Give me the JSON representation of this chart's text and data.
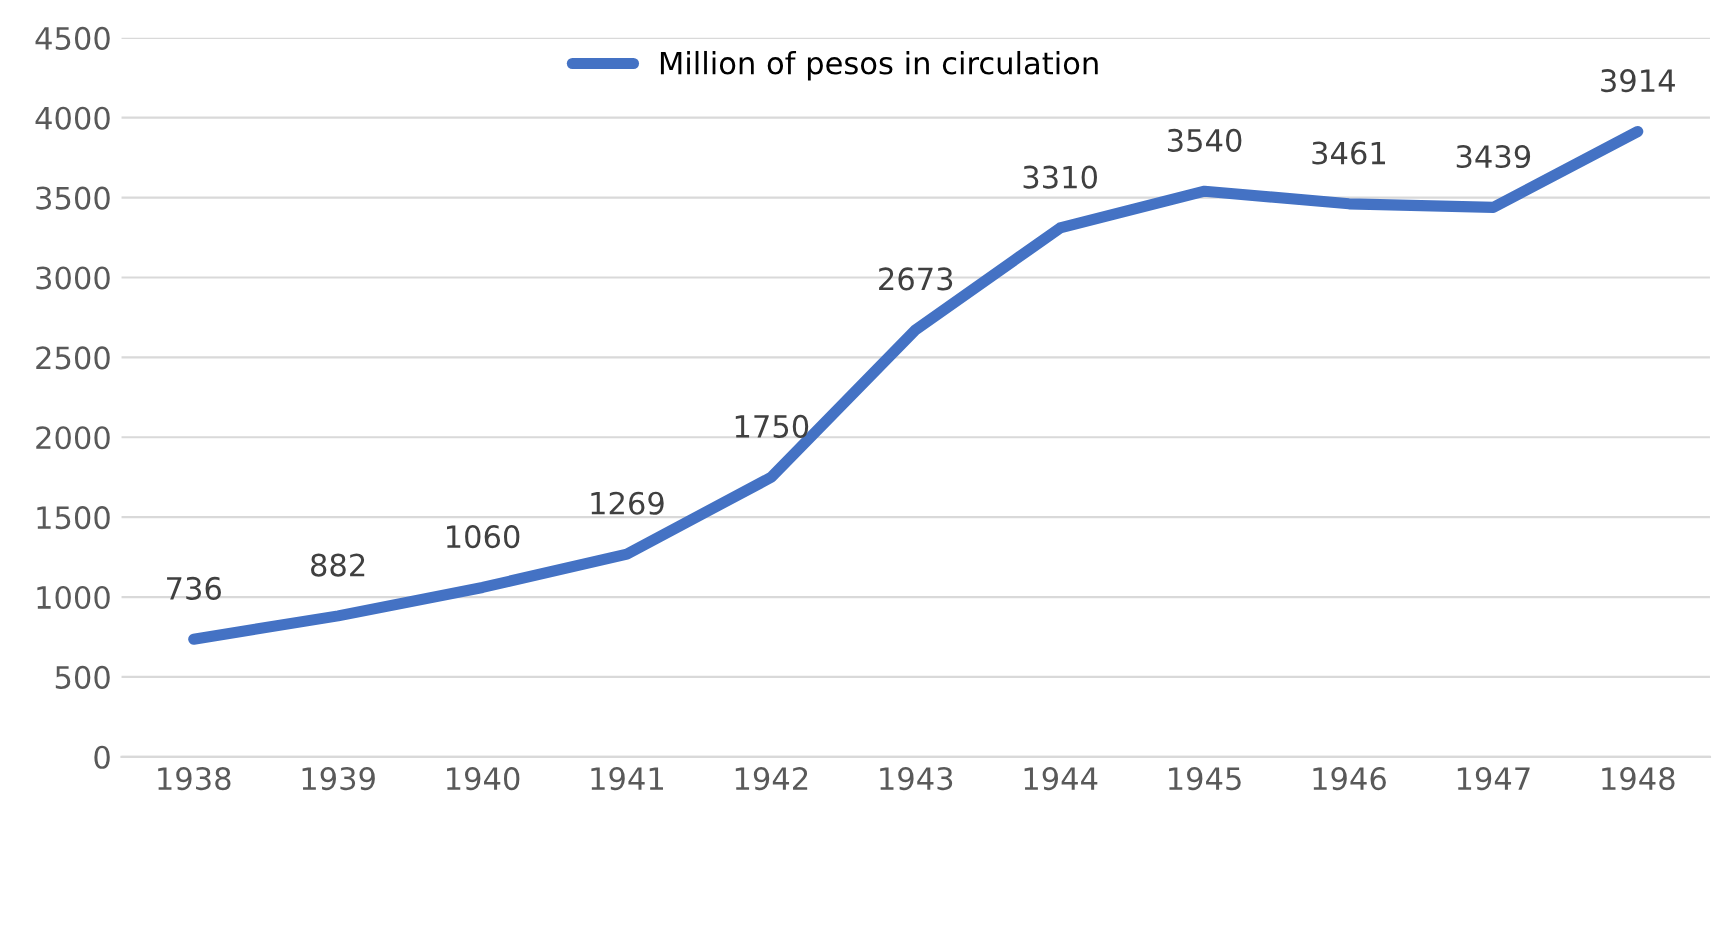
{
  "chart_data": {
    "type": "line",
    "categories": [
      "1938",
      "1939",
      "1940",
      "1941",
      "1942",
      "1943",
      "1944",
      "1945",
      "1946",
      "1947",
      "1948"
    ],
    "series": [
      {
        "name": "Million of pesos in circulation",
        "color": "#4472c4",
        "values": [
          736,
          882,
          1060,
          1269,
          1750,
          2673,
          3310,
          3540,
          3461,
          3439,
          3914
        ]
      }
    ],
    "ylim": [
      0,
      4500
    ],
    "yticks": [
      0,
      500,
      1000,
      1500,
      2000,
      2500,
      3000,
      3500,
      4000,
      4500
    ],
    "grid": "y",
    "legend": "top",
    "data_labels": true,
    "marker": "none",
    "line_style": "solid"
  }
}
